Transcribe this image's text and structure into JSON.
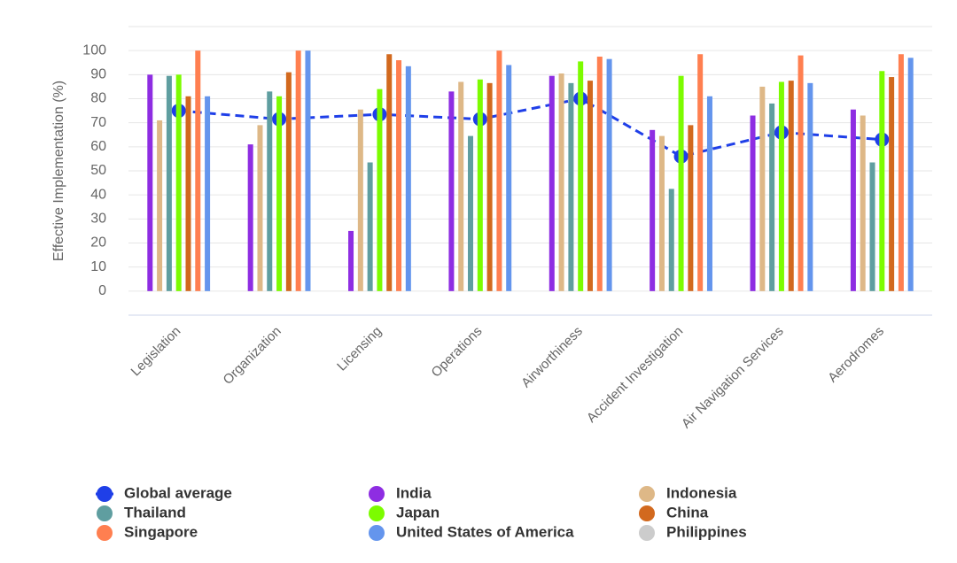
{
  "chart_data": {
    "type": "bar",
    "y_label": "Effective Implementation (%)",
    "categories": [
      "Legislation",
      "Organization",
      "Licensing",
      "Operations",
      "Airworthiness",
      "Accident Investigation",
      "Air Navigation Services",
      "Aerodromes"
    ],
    "ylim": [
      -10,
      110
    ],
    "yticks": [
      0,
      10,
      20,
      30,
      40,
      50,
      60,
      70,
      80,
      90,
      100
    ],
    "grid": true,
    "legend": "bottom",
    "series": [
      {
        "name": "Global average",
        "type": "line",
        "color": "#1f3fe8",
        "values": [
          75,
          71.5,
          73.5,
          71.5,
          80,
          56,
          66,
          63
        ]
      },
      {
        "name": "India",
        "color": "#8e2de2",
        "values": [
          90,
          61,
          25,
          83,
          89.5,
          67,
          73,
          75.5
        ]
      },
      {
        "name": "Indonesia",
        "color": "#deb887",
        "values": [
          71,
          69,
          75.5,
          87,
          90.5,
          64.5,
          85,
          73
        ]
      },
      {
        "name": "Thailand",
        "color": "#5f9ea0",
        "values": [
          89.5,
          83,
          53.5,
          64.5,
          86.5,
          42.5,
          78,
          53.5
        ]
      },
      {
        "name": "Japan",
        "color": "#7cfc00",
        "values": [
          90,
          81,
          84,
          88,
          95.5,
          89.5,
          87,
          91.5
        ]
      },
      {
        "name": "China",
        "color": "#d2691e",
        "values": [
          81,
          91,
          98.5,
          86.5,
          87.5,
          69,
          87.5,
          89
        ]
      },
      {
        "name": "Singapore",
        "color": "#ff7f50",
        "values": [
          100,
          100,
          96,
          100,
          97.5,
          98.5,
          98,
          98.5
        ]
      },
      {
        "name": "United States of America",
        "color": "#6495ed",
        "values": [
          81,
          100,
          93.5,
          94,
          96.5,
          81,
          86.5,
          97
        ]
      },
      {
        "name": "Philippines",
        "color": "#cccccc",
        "hidden": true,
        "values": [
          null,
          null,
          null,
          null,
          null,
          null,
          null,
          null
        ]
      }
    ]
  }
}
